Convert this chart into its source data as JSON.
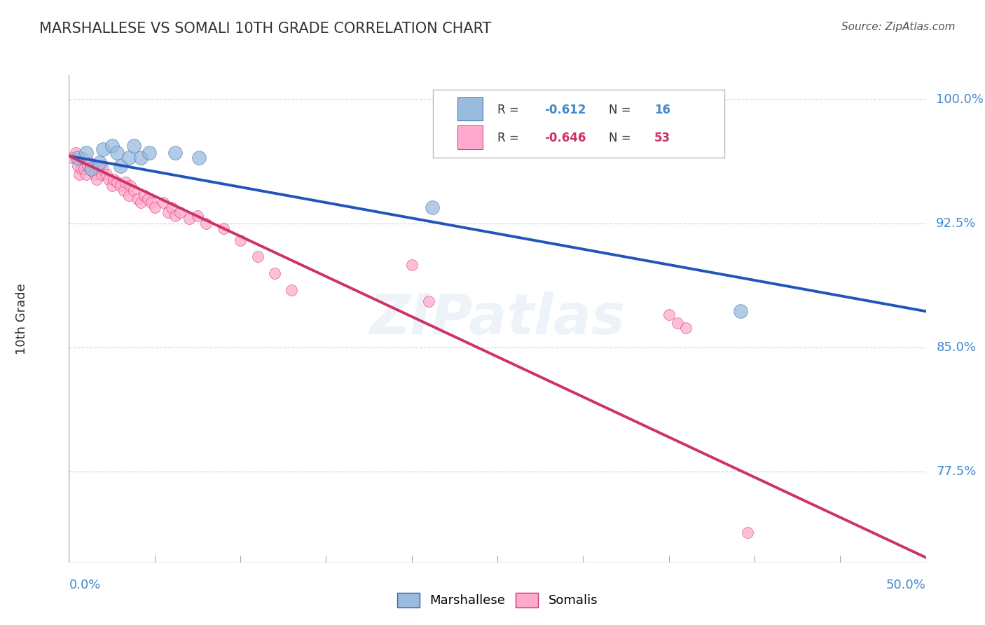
{
  "title": "MARSHALLESE VS SOMALI 10TH GRADE CORRELATION CHART",
  "source": "Source: ZipAtlas.com",
  "watermark": "ZIPatlas",
  "ylabel": "10th Grade",
  "yticks": [
    0.775,
    0.85,
    0.925,
    1.0
  ],
  "ytick_labels": [
    "77.5%",
    "85.0%",
    "92.5%",
    "100.0%"
  ],
  "xlim": [
    0.0,
    0.5
  ],
  "ylim": [
    0.72,
    1.015
  ],
  "legend_R_blue": "-0.612",
  "legend_N_blue": "16",
  "legend_R_pink": "-0.646",
  "legend_N_pink": "53",
  "blue_line_x": [
    0.0,
    0.5
  ],
  "blue_line_y": [
    0.966,
    0.872
  ],
  "pink_line_x": [
    0.0,
    0.5
  ],
  "pink_line_y": [
    0.966,
    0.723
  ],
  "marshallese_x": [
    0.005,
    0.01,
    0.013,
    0.018,
    0.02,
    0.025,
    0.028,
    0.03,
    0.035,
    0.038,
    0.042,
    0.047,
    0.062,
    0.076,
    0.212,
    0.392
  ],
  "marshallese_y": [
    0.965,
    0.968,
    0.958,
    0.962,
    0.97,
    0.972,
    0.968,
    0.96,
    0.965,
    0.972,
    0.965,
    0.968,
    0.968,
    0.965,
    0.935,
    0.872
  ],
  "somali_x": [
    0.002,
    0.004,
    0.005,
    0.006,
    0.007,
    0.008,
    0.009,
    0.01,
    0.011,
    0.012,
    0.013,
    0.015,
    0.016,
    0.017,
    0.018,
    0.019,
    0.02,
    0.022,
    0.023,
    0.025,
    0.026,
    0.028,
    0.03,
    0.032,
    0.033,
    0.035,
    0.036,
    0.038,
    0.04,
    0.042,
    0.044,
    0.046,
    0.048,
    0.05,
    0.055,
    0.058,
    0.06,
    0.062,
    0.065,
    0.07,
    0.075,
    0.08,
    0.09,
    0.1,
    0.11,
    0.12,
    0.13,
    0.2,
    0.21,
    0.35,
    0.355,
    0.36,
    0.396
  ],
  "somali_y": [
    0.965,
    0.968,
    0.96,
    0.955,
    0.958,
    0.965,
    0.958,
    0.955,
    0.96,
    0.962,
    0.958,
    0.955,
    0.952,
    0.958,
    0.96,
    0.955,
    0.958,
    0.955,
    0.952,
    0.948,
    0.952,
    0.95,
    0.948,
    0.945,
    0.95,
    0.942,
    0.948,
    0.945,
    0.94,
    0.938,
    0.942,
    0.94,
    0.938,
    0.935,
    0.938,
    0.932,
    0.935,
    0.93,
    0.932,
    0.928,
    0.93,
    0.925,
    0.922,
    0.915,
    0.905,
    0.895,
    0.885,
    0.9,
    0.878,
    0.87,
    0.865,
    0.862,
    0.738
  ],
  "blue_dot_color": "#99BBDD",
  "blue_edge_color": "#3366AA",
  "pink_dot_color": "#FFAACC",
  "pink_edge_color": "#CC3377",
  "blue_reg_color": "#2255BB",
  "pink_reg_color": "#CC3366",
  "grid_color": "#CCCCCC",
  "bg_color": "#FFFFFF",
  "title_color": "#333333",
  "label_color": "#4488CC",
  "source_color": "#555555"
}
